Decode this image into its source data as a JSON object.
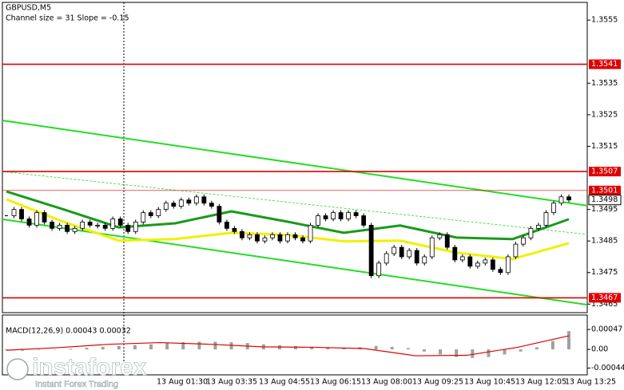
{
  "chart_data": {
    "type": "candlestick",
    "symbol": "GBPUSD,M5",
    "indicator_text": "Channel size = 31 Slope = -0.15",
    "ylim": [
      1.34623,
      1.35606
    ],
    "yticks": [
      1.3555,
      1.3535,
      1.3525,
      1.3515,
      1.3495,
      1.3485,
      1.3475,
      1.3465
    ],
    "close": [
      1.3493,
      1.3495,
      1.3492,
      1.349,
      1.3494,
      1.3491,
      1.3489,
      1.349,
      1.3488,
      1.3489,
      1.3491,
      1.349,
      1.349,
      1.3489,
      1.3492,
      1.349,
      1.3488,
      1.3491,
      1.3494,
      1.3493,
      1.3495,
      1.3497,
      1.3496,
      1.3498,
      1.3497,
      1.3499,
      1.3497,
      1.3496,
      1.3491,
      1.3489,
      1.3488,
      1.3486,
      1.3487,
      1.3485,
      1.3486,
      1.3487,
      1.3485,
      1.3487,
      1.3486,
      1.3485,
      1.349,
      1.3493,
      1.3492,
      1.3494,
      1.3492,
      1.3494,
      1.3493,
      1.349,
      1.3474,
      1.3478,
      1.3481,
      1.3483,
      1.348,
      1.3482,
      1.3478,
      1.348,
      1.3486,
      1.3487,
      1.3483,
      1.3479,
      1.348,
      1.3477,
      1.3478,
      1.3479,
      1.3476,
      1.3475,
      1.348,
      1.3484,
      1.3486,
      1.3489,
      1.349,
      1.3494,
      1.3497,
      1.3499,
      1.3498
    ],
    "ma_slow": {
      "color": "#f0f000",
      "values": [
        1.34982,
        1.34912,
        1.34851,
        1.34856,
        1.34876,
        1.34869,
        1.34849,
        1.34851,
        1.34813,
        1.34793,
        1.34843
      ]
    },
    "ma_fast": {
      "color": "#1a9a1a",
      "values": [
        1.35007,
        1.34951,
        1.34893,
        1.34906,
        1.34944,
        1.34911,
        1.34876,
        1.34899,
        1.34861,
        1.34856,
        1.34919
      ]
    },
    "channel": {
      "color": "#22dd22",
      "upper": [
        1.35232,
        1.34962
      ],
      "middle": [
        1.3507,
        1.34871
      ],
      "lower": [
        1.34919,
        1.34648
      ]
    },
    "levels": [
      {
        "value": 1.3541,
        "color": "#e00000"
      },
      {
        "value": 1.3507,
        "color": "#e00000"
      },
      {
        "value": 1.3501,
        "color": "#e00000"
      },
      {
        "value": 1.3467,
        "color": "#e00000"
      }
    ],
    "current_price": 1.3498,
    "x_labels": [
      "13 Aug 01:30",
      "13 Aug 03:35",
      "13 Aug 04:55",
      "13 Aug 06:15",
      "13 Aug 08:00",
      "13 Aug 09:25",
      "13 Aug 10:45",
      "13 Aug 12:05",
      "13 Aug 13:25"
    ],
    "macd": {
      "title": "MACD(12,26,9) 0.00043 0.00032",
      "ylim": [
        -0.0006,
        0.00081
      ],
      "yticks": [
        0.00047,
        {
          "value": 0,
          "label": "0.00"
        },
        -0.00044
      ],
      "histogram": [
        -2e-05,
        -3e-05,
        -1e-05,
        0,
        2e-05,
        4e-05,
        6e-05,
        8e-05,
        0.0001,
        0.00012,
        0.00015,
        0.00017,
        0.00018,
        0.00018,
        0.00017,
        0.00015,
        0.00012,
        0.0001,
        8e-05,
        6e-05,
        4e-05,
        3e-05,
        5e-05,
        8e-05,
        6e-05,
        3e-05,
        -5e-05,
        -0.00012,
        -0.00018,
        -0.0002,
        -0.00018,
        -0.00012,
        -5e-05,
        5e-05,
        0.0002,
        0.00043
      ],
      "signal": {
        "color": "#e00000",
        "values": [
          -2e-05,
          4e-05,
          0.00012,
          0.00016,
          0.00012,
          6e-05,
          5e-05,
          2e-05,
          -0.00015,
          -0.00014,
          5e-05,
          0.00032
        ]
      }
    },
    "watermark": {
      "brand": "instaforex",
      "tagline": "Instant Forex Trading"
    }
  }
}
